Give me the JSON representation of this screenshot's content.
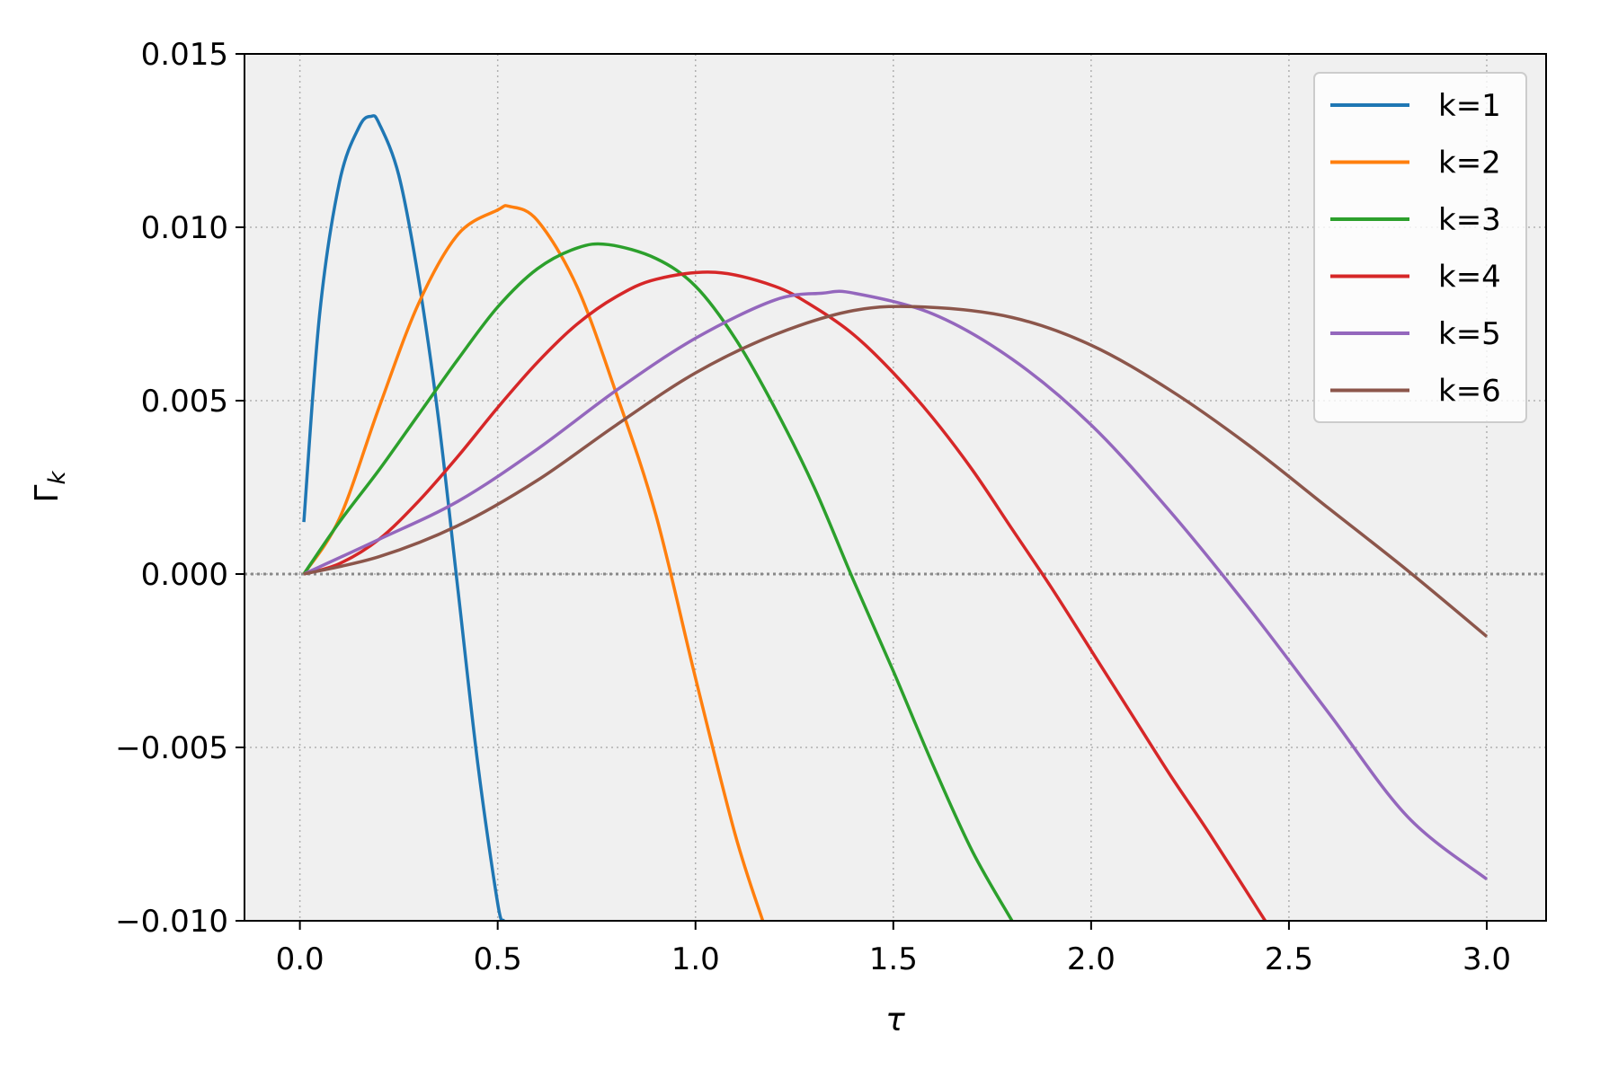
{
  "chart_data": {
    "type": "line",
    "title": "",
    "xlabel": "τ",
    "ylabel": "Γ",
    "ylabel_subscript": "k",
    "xlim": [
      -0.14,
      3.15
    ],
    "ylim": [
      -0.01,
      0.015
    ],
    "xticks": [
      0.0,
      0.5,
      1.0,
      1.5,
      2.0,
      2.5,
      3.0
    ],
    "xtick_labels": [
      "0.0",
      "0.5",
      "1.0",
      "1.5",
      "2.0",
      "2.5",
      "3.0"
    ],
    "yticks": [
      -0.01,
      -0.005,
      0.0,
      0.005,
      0.01,
      0.015
    ],
    "ytick_labels": [
      "−0.010",
      "−0.005",
      "0.000",
      "0.005",
      "0.010",
      "0.015"
    ],
    "grid": true,
    "grid_style": "dotted",
    "plot_background": "#f0f0f0",
    "zero_line": {
      "y": 0,
      "style": "dotted",
      "color": "#888888"
    },
    "legend_position": "top-right",
    "series": [
      {
        "name": "k=1",
        "color": "#1f77b4",
        "x": [
          0.01,
          0.05,
          0.1,
          0.15,
          0.18,
          0.2,
          0.25,
          0.3,
          0.35,
          0.4,
          0.45,
          0.5,
          0.515
        ],
        "y": [
          0.0015,
          0.0075,
          0.0113,
          0.0129,
          0.0132,
          0.013,
          0.0115,
          0.0085,
          0.0045,
          -0.0005,
          -0.0055,
          -0.0095,
          -0.01
        ]
      },
      {
        "name": "k=2",
        "color": "#ff7f0e",
        "x": [
          0.01,
          0.1,
          0.2,
          0.3,
          0.4,
          0.5,
          0.53,
          0.6,
          0.7,
          0.8,
          0.9,
          1.0,
          1.1,
          1.17
        ],
        "y": [
          0.0,
          0.0016,
          0.0048,
          0.0078,
          0.0098,
          0.0105,
          0.0106,
          0.0102,
          0.0083,
          0.0052,
          0.0017,
          -0.003,
          -0.0075,
          -0.01
        ]
      },
      {
        "name": "k=3",
        "color": "#2ca02c",
        "x": [
          0.01,
          0.1,
          0.2,
          0.3,
          0.4,
          0.5,
          0.6,
          0.7,
          0.78,
          0.9,
          1.0,
          1.1,
          1.2,
          1.3,
          1.4,
          1.5,
          1.6,
          1.7,
          1.8
        ],
        "y": [
          0.0,
          0.0015,
          0.003,
          0.0046,
          0.0062,
          0.0077,
          0.0088,
          0.0094,
          0.0095,
          0.0091,
          0.0083,
          0.0068,
          0.0048,
          0.0025,
          -0.0002,
          -0.0028,
          -0.0055,
          -0.008,
          -0.01
        ]
      },
      {
        "name": "k=4",
        "color": "#d62728",
        "x": [
          0.01,
          0.1,
          0.2,
          0.3,
          0.4,
          0.5,
          0.6,
          0.7,
          0.8,
          0.9,
          1.05,
          1.2,
          1.3,
          1.4,
          1.5,
          1.6,
          1.7,
          1.8,
          1.9,
          2.0,
          2.1,
          2.2,
          2.3,
          2.44
        ],
        "y": [
          0.0,
          0.0003,
          0.001,
          0.0021,
          0.0034,
          0.0048,
          0.0061,
          0.0072,
          0.008,
          0.0085,
          0.0087,
          0.0083,
          0.0077,
          0.0069,
          0.0058,
          0.0045,
          0.003,
          0.0013,
          -0.0004,
          -0.0022,
          -0.004,
          -0.0058,
          -0.0075,
          -0.01
        ]
      },
      {
        "name": "k=5",
        "color": "#9467bd",
        "x": [
          0.01,
          0.2,
          0.4,
          0.6,
          0.8,
          1.0,
          1.2,
          1.32,
          1.4,
          1.6,
          1.8,
          2.0,
          2.2,
          2.4,
          2.6,
          2.8,
          3.0
        ],
        "y": [
          0.0,
          0.001,
          0.0021,
          0.0036,
          0.0053,
          0.0068,
          0.0079,
          0.0081,
          0.0081,
          0.0075,
          0.0062,
          0.0043,
          0.0018,
          -0.001,
          -0.004,
          -0.007,
          -0.0088
        ]
      },
      {
        "name": "k=6",
        "color": "#8c564b",
        "x": [
          0.01,
          0.2,
          0.4,
          0.6,
          0.8,
          1.0,
          1.2,
          1.4,
          1.58,
          1.8,
          2.0,
          2.2,
          2.4,
          2.6,
          2.8,
          3.0
        ],
        "y": [
          0.0,
          0.0005,
          0.0014,
          0.0027,
          0.0043,
          0.0058,
          0.0069,
          0.0076,
          0.0077,
          0.0074,
          0.0066,
          0.0053,
          0.0037,
          0.0019,
          0.0001,
          -0.0018
        ]
      }
    ]
  }
}
